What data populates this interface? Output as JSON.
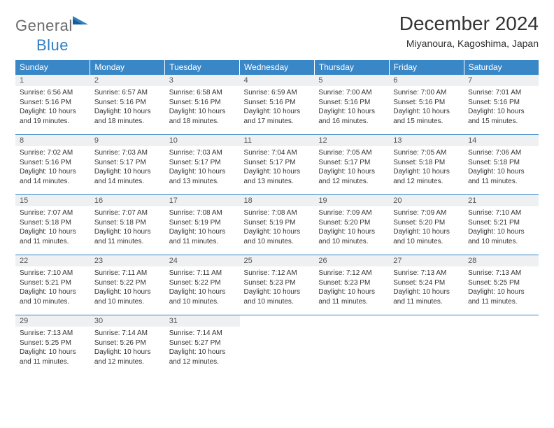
{
  "logo": {
    "general": "General",
    "blue": "Blue"
  },
  "title": "December 2024",
  "location": "Miyanoura, Kagoshima, Japan",
  "colors": {
    "header_bg": "#3a87c8",
    "header_fg": "#ffffff",
    "daynum_bg": "#eef0f2",
    "row_border": "#3a87c8",
    "logo_gray": "#6a6a6a",
    "logo_blue": "#2f7fc1"
  },
  "weekdays": [
    "Sunday",
    "Monday",
    "Tuesday",
    "Wednesday",
    "Thursday",
    "Friday",
    "Saturday"
  ],
  "weeks": [
    [
      {
        "n": "1",
        "sr": "6:56 AM",
        "ss": "5:16 PM",
        "dl": "10 hours and 19 minutes."
      },
      {
        "n": "2",
        "sr": "6:57 AM",
        "ss": "5:16 PM",
        "dl": "10 hours and 18 minutes."
      },
      {
        "n": "3",
        "sr": "6:58 AM",
        "ss": "5:16 PM",
        "dl": "10 hours and 18 minutes."
      },
      {
        "n": "4",
        "sr": "6:59 AM",
        "ss": "5:16 PM",
        "dl": "10 hours and 17 minutes."
      },
      {
        "n": "5",
        "sr": "7:00 AM",
        "ss": "5:16 PM",
        "dl": "10 hours and 16 minutes."
      },
      {
        "n": "6",
        "sr": "7:00 AM",
        "ss": "5:16 PM",
        "dl": "10 hours and 15 minutes."
      },
      {
        "n": "7",
        "sr": "7:01 AM",
        "ss": "5:16 PM",
        "dl": "10 hours and 15 minutes."
      }
    ],
    [
      {
        "n": "8",
        "sr": "7:02 AM",
        "ss": "5:16 PM",
        "dl": "10 hours and 14 minutes."
      },
      {
        "n": "9",
        "sr": "7:03 AM",
        "ss": "5:17 PM",
        "dl": "10 hours and 14 minutes."
      },
      {
        "n": "10",
        "sr": "7:03 AM",
        "ss": "5:17 PM",
        "dl": "10 hours and 13 minutes."
      },
      {
        "n": "11",
        "sr": "7:04 AM",
        "ss": "5:17 PM",
        "dl": "10 hours and 13 minutes."
      },
      {
        "n": "12",
        "sr": "7:05 AM",
        "ss": "5:17 PM",
        "dl": "10 hours and 12 minutes."
      },
      {
        "n": "13",
        "sr": "7:05 AM",
        "ss": "5:18 PM",
        "dl": "10 hours and 12 minutes."
      },
      {
        "n": "14",
        "sr": "7:06 AM",
        "ss": "5:18 PM",
        "dl": "10 hours and 11 minutes."
      }
    ],
    [
      {
        "n": "15",
        "sr": "7:07 AM",
        "ss": "5:18 PM",
        "dl": "10 hours and 11 minutes."
      },
      {
        "n": "16",
        "sr": "7:07 AM",
        "ss": "5:18 PM",
        "dl": "10 hours and 11 minutes."
      },
      {
        "n": "17",
        "sr": "7:08 AM",
        "ss": "5:19 PM",
        "dl": "10 hours and 11 minutes."
      },
      {
        "n": "18",
        "sr": "7:08 AM",
        "ss": "5:19 PM",
        "dl": "10 hours and 10 minutes."
      },
      {
        "n": "19",
        "sr": "7:09 AM",
        "ss": "5:20 PM",
        "dl": "10 hours and 10 minutes."
      },
      {
        "n": "20",
        "sr": "7:09 AM",
        "ss": "5:20 PM",
        "dl": "10 hours and 10 minutes."
      },
      {
        "n": "21",
        "sr": "7:10 AM",
        "ss": "5:21 PM",
        "dl": "10 hours and 10 minutes."
      }
    ],
    [
      {
        "n": "22",
        "sr": "7:10 AM",
        "ss": "5:21 PM",
        "dl": "10 hours and 10 minutes."
      },
      {
        "n": "23",
        "sr": "7:11 AM",
        "ss": "5:22 PM",
        "dl": "10 hours and 10 minutes."
      },
      {
        "n": "24",
        "sr": "7:11 AM",
        "ss": "5:22 PM",
        "dl": "10 hours and 10 minutes."
      },
      {
        "n": "25",
        "sr": "7:12 AM",
        "ss": "5:23 PM",
        "dl": "10 hours and 10 minutes."
      },
      {
        "n": "26",
        "sr": "7:12 AM",
        "ss": "5:23 PM",
        "dl": "10 hours and 11 minutes."
      },
      {
        "n": "27",
        "sr": "7:13 AM",
        "ss": "5:24 PM",
        "dl": "10 hours and 11 minutes."
      },
      {
        "n": "28",
        "sr": "7:13 AM",
        "ss": "5:25 PM",
        "dl": "10 hours and 11 minutes."
      }
    ],
    [
      {
        "n": "29",
        "sr": "7:13 AM",
        "ss": "5:25 PM",
        "dl": "10 hours and 11 minutes."
      },
      {
        "n": "30",
        "sr": "7:14 AM",
        "ss": "5:26 PM",
        "dl": "10 hours and 12 minutes."
      },
      {
        "n": "31",
        "sr": "7:14 AM",
        "ss": "5:27 PM",
        "dl": "10 hours and 12 minutes."
      },
      null,
      null,
      null,
      null
    ]
  ],
  "labels": {
    "sunrise": "Sunrise:",
    "sunset": "Sunset:",
    "daylight": "Daylight:"
  }
}
